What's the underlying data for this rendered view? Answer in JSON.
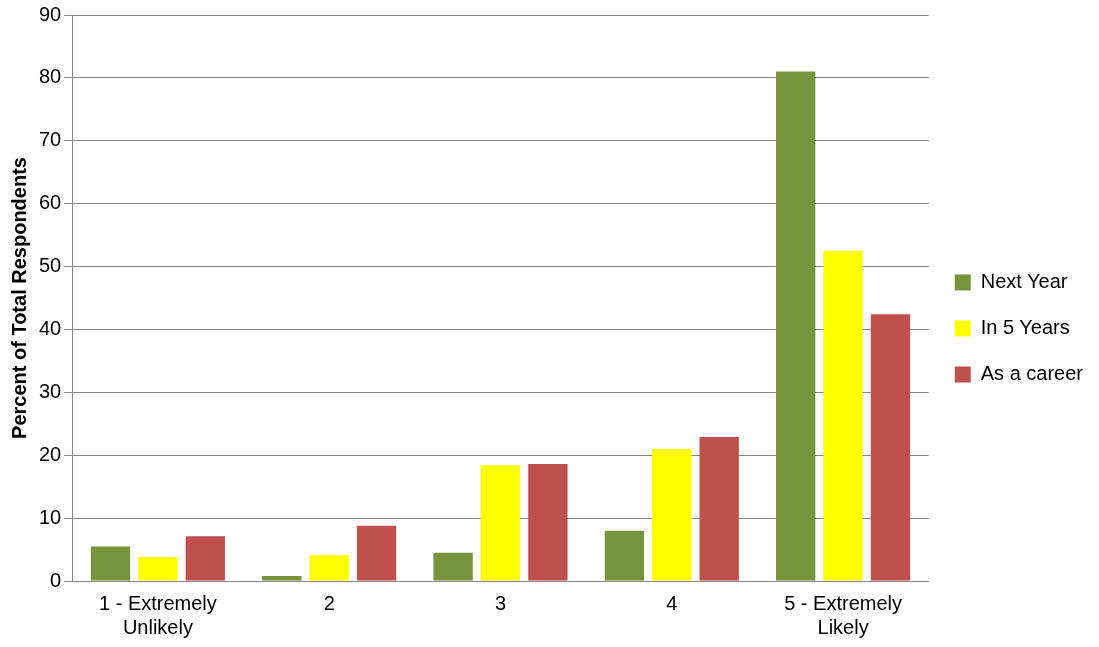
{
  "chart_data": {
    "type": "bar",
    "ylabel": "Percent of Total Respondents",
    "categories": [
      "1 - Extremely Unlikely",
      "2",
      "3",
      "4",
      "5 - Extremely Likely"
    ],
    "series": [
      {
        "name": "Next Year",
        "color": "#77933c",
        "values": [
          5.5,
          0.8,
          4.5,
          8.0,
          81.0
        ]
      },
      {
        "name": "In 5 Years",
        "color": "#ffff00",
        "values": [
          3.8,
          4.1,
          18.4,
          21.0,
          52.5
        ]
      },
      {
        "name": "As a career",
        "color": "#c0504d",
        "values": [
          7.1,
          8.8,
          18.6,
          22.9,
          42.4
        ]
      }
    ],
    "ylim": [
      0,
      90
    ],
    "yticks": [
      0,
      10,
      20,
      30,
      40,
      50,
      60,
      70,
      80,
      90
    ],
    "grid": "y",
    "legend": "right"
  }
}
